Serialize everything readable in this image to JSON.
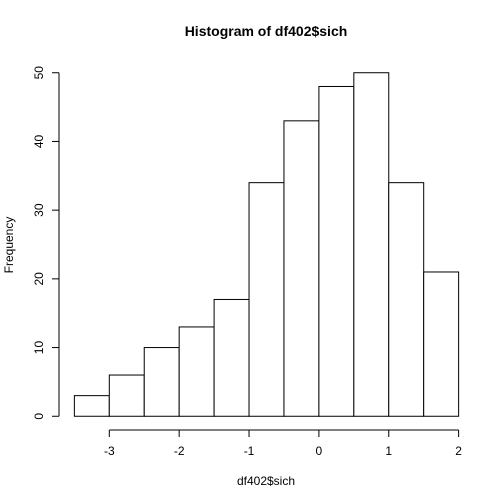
{
  "chart_data": {
    "type": "bar",
    "title": "Histogram of df402$sich",
    "xlabel": "df402$sich",
    "ylabel": "Frequency",
    "bin_edges": [
      -3.5,
      -3,
      -2.5,
      -2,
      -1.5,
      -1,
      -0.5,
      0,
      0.5,
      1,
      1.5,
      2
    ],
    "values": [
      3,
      6,
      10,
      13,
      17,
      34,
      43,
      48,
      50,
      34,
      21
    ],
    "xlim": [
      -3.5,
      2
    ],
    "ylim": [
      0,
      50
    ],
    "x_ticks": [
      -3,
      -2,
      -1,
      0,
      1,
      2
    ],
    "y_ticks": [
      0,
      10,
      20,
      30,
      40,
      50
    ],
    "grid": false,
    "colors": {
      "bar_fill": "#ffffff",
      "bar_stroke": "#000000"
    }
  }
}
